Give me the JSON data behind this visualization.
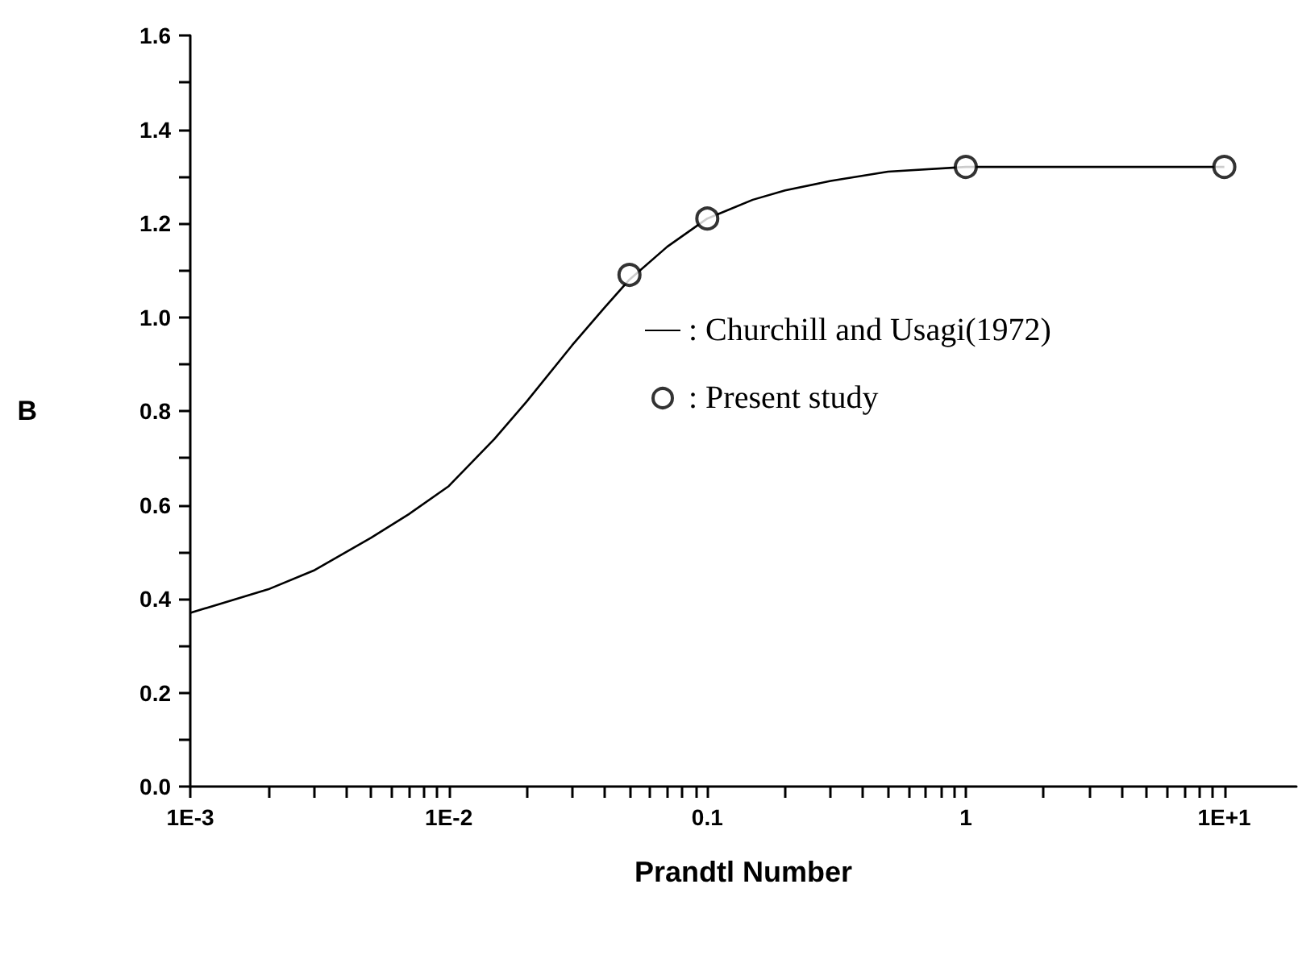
{
  "chart_data": {
    "type": "line",
    "xlabel": "Prandtl Number",
    "ylabel": "B",
    "log": "x",
    "xlim": [
      0.001,
      19
    ],
    "ylim": [
      0,
      1.6
    ],
    "xticks": [
      {
        "value": 0.001,
        "label": "1E-3"
      },
      {
        "value": 0.002,
        "label": null
      },
      {
        "value": 0.003,
        "label": null
      },
      {
        "value": 0.004,
        "label": null
      },
      {
        "value": 0.005,
        "label": null
      },
      {
        "value": 0.006,
        "label": null
      },
      {
        "value": 0.007,
        "label": null
      },
      {
        "value": 0.008,
        "label": null
      },
      {
        "value": 0.009,
        "label": null
      },
      {
        "value": 0.01,
        "label": "1E-2"
      },
      {
        "value": 0.02,
        "label": null
      },
      {
        "value": 0.03,
        "label": null
      },
      {
        "value": 0.04,
        "label": null
      },
      {
        "value": 0.05,
        "label": null
      },
      {
        "value": 0.06,
        "label": null
      },
      {
        "value": 0.07,
        "label": null
      },
      {
        "value": 0.08,
        "label": null
      },
      {
        "value": 0.09,
        "label": null
      },
      0.1,
      {
        "value": 0.2,
        "label": null
      },
      {
        "value": 0.3,
        "label": null
      },
      {
        "value": 0.4,
        "label": null
      },
      {
        "value": 0.5,
        "label": null
      },
      {
        "value": 0.6,
        "label": null
      },
      {
        "value": 0.7,
        "label": null
      },
      {
        "value": 0.8,
        "label": null
      },
      {
        "value": 0.9,
        "label": null
      },
      1,
      {
        "value": 2,
        "label": null
      },
      {
        "value": 3,
        "label": null
      },
      {
        "value": 4,
        "label": null
      },
      {
        "value": 5,
        "label": null
      },
      {
        "value": 6,
        "label": null
      },
      {
        "value": 7,
        "label": null
      },
      {
        "value": 8,
        "label": null
      },
      {
        "value": 9,
        "label": null
      },
      {
        "value": 10,
        "label": "1E+1"
      }
    ],
    "yticks": [
      {
        "value": 0,
        "label": "0.0"
      },
      {
        "value": 0.1,
        "label": null
      },
      0.2,
      {
        "value": 0.3,
        "label": null
      },
      0.4,
      {
        "value": 0.5,
        "label": null
      },
      0.6,
      {
        "value": 0.7,
        "label": null
      },
      0.8,
      {
        "value": 0.9,
        "label": null
      },
      {
        "value": 1,
        "label": "1.0"
      },
      {
        "value": 1.1,
        "label": null
      },
      1.2,
      {
        "value": 1.3,
        "label": null
      },
      1.4,
      {
        "value": 1.5,
        "label": null
      },
      1.6
    ],
    "grid": false,
    "legend": "center",
    "series": [
      {
        "name": ": Churchill and Usagi(1972)",
        "color": "#000000",
        "marker": "none",
        "line_style": "solid",
        "x": [
          0.001,
          0.002,
          0.003,
          0.005,
          0.007,
          0.01,
          0.015,
          0.02,
          0.03,
          0.04,
          0.05,
          0.07,
          0.1,
          0.15,
          0.2,
          0.3,
          0.5,
          1,
          2,
          10
        ],
        "values": [
          0.37,
          0.42,
          0.46,
          0.53,
          0.58,
          0.64,
          0.74,
          0.82,
          0.94,
          1.02,
          1.08,
          1.15,
          1.21,
          1.25,
          1.27,
          1.29,
          1.31,
          1.32,
          1.32,
          1.32
        ]
      },
      {
        "name": ": Present study",
        "type": "scatter",
        "color": "#000000",
        "marker": "circle",
        "x": [
          0.05,
          0.1,
          1,
          10
        ],
        "values": [
          1.09,
          1.21,
          1.32,
          1.32
        ]
      }
    ]
  }
}
